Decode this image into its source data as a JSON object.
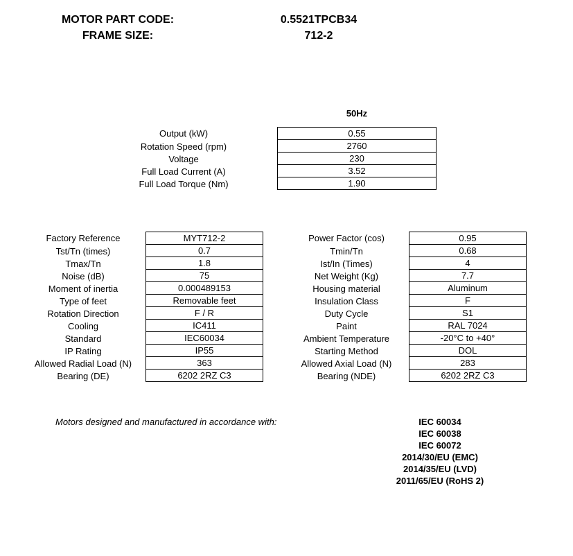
{
  "header": {
    "partCodeLabel": "MOTOR PART CODE:",
    "partCodeValue": "0.5521TPCB34",
    "frameSizeLabel": "FRAME SIZE:",
    "frameSizeValue": "712-2"
  },
  "topTable": {
    "freqHeader": "50Hz",
    "rows": [
      {
        "label": "Output (kW)",
        "value": "0.55"
      },
      {
        "label": "Rotation Speed (rpm)",
        "value": "2760"
      },
      {
        "label": "Voltage",
        "value": "230"
      },
      {
        "label": "Full Load Current (A)",
        "value": "3.52"
      },
      {
        "label": "Full Load Torque (Nm)",
        "value": "1.90"
      }
    ]
  },
  "leftTable": [
    {
      "label": "Factory Reference",
      "value": "MYT712-2"
    },
    {
      "label": "Tst/Tn (times)",
      "value": "0.7"
    },
    {
      "label": "Tmax/Tn",
      "value": "1.8"
    },
    {
      "label": "Noise (dB)",
      "value": "75"
    },
    {
      "label": "Moment of inertia",
      "value": "0.000489153"
    },
    {
      "label": "Type of feet",
      "value": "Removable feet"
    },
    {
      "label": "Rotation Direction",
      "value": "F / R"
    },
    {
      "label": "Cooling",
      "value": "IC411"
    },
    {
      "label": "Standard",
      "value": "IEC60034"
    },
    {
      "label": "IP Rating",
      "value": "IP55"
    },
    {
      "label": "Allowed Radial Load (N)",
      "value": "363"
    },
    {
      "label": "Bearing (DE)",
      "value": "6202 2RZ C3"
    }
  ],
  "rightTable": [
    {
      "label": "Power Factor (cos)",
      "value": "0.95"
    },
    {
      "label": "Tmin/Tn",
      "value": "0.68"
    },
    {
      "label": "Ist/In (Times)",
      "value": "4"
    },
    {
      "label": "Net Weight (Kg)",
      "value": "7.7"
    },
    {
      "label": "Housing material",
      "value": "Aluminum"
    },
    {
      "label": "Insulation Class",
      "value": "F"
    },
    {
      "label": "Duty Cycle",
      "value": "S1"
    },
    {
      "label": "Paint",
      "value": "RAL 7024"
    },
    {
      "label": "Ambient Temperature",
      "value": "-20°C to +40°"
    },
    {
      "label": "Starting Method",
      "value": "DOL"
    },
    {
      "label": "Allowed Axial Load (N)",
      "value": "283"
    },
    {
      "label": "Bearing (NDE)",
      "value": "6202 2RZ C3"
    }
  ],
  "compliance": {
    "text": "Motors designed and manufactured in accordance with:",
    "standards": [
      "IEC 60034",
      "IEC 60038",
      "IEC 60072",
      "2014/30/EU (EMC)",
      "2014/35/EU (LVD)",
      "2011/65/EU (RoHS 2)"
    ]
  }
}
